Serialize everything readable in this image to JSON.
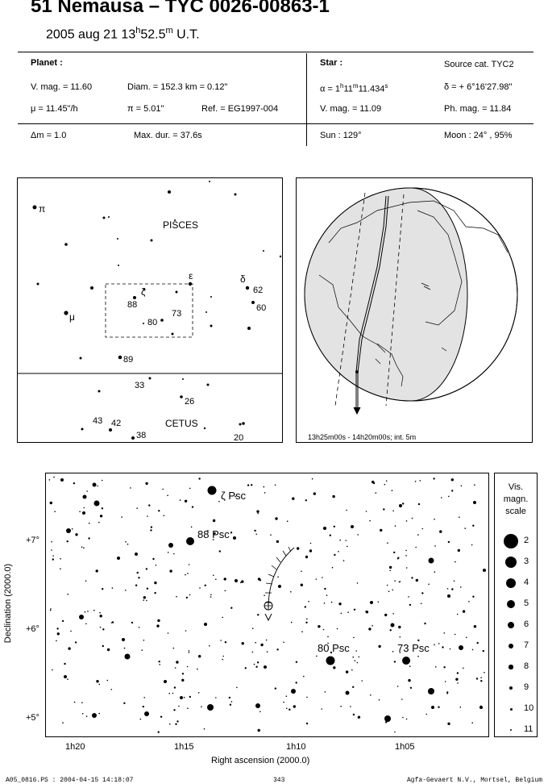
{
  "header": {
    "title": "51 Nemausa  –  TYC 0026-00863-1",
    "date": "2005 aug 21  13",
    "time_h": "h",
    "time_min": "52.5",
    "time_m": "m",
    "time_ut": " U.T."
  },
  "planet": {
    "heading": "Planet :",
    "vmag": "V. mag. = 11.60",
    "diam": "Diam. = 152.3 km = 0.12\"",
    "mu": "μ =  11.45\"/h",
    "pi": "π =  5.01\"",
    "ref": "Ref. = EG1997-004"
  },
  "star": {
    "heading": "Star :",
    "source": "Source cat.  TYC2",
    "alpha_prefix": "α =  1",
    "alpha_h": "h",
    "alpha_mid": "11",
    "alpha_m": "m",
    "alpha_s": "11.434",
    "alpha_sup": "s",
    "delta": "δ = + 6°16'27.98\"",
    "vmag": "V. mag. = 11.09",
    "phmag": "Ph. mag. = 11.84"
  },
  "bottom_row": {
    "dm": "Δm = 1.0",
    "maxdur": "Max. dur. = 37.6s",
    "sun": "Sun : 129°",
    "moon": "Moon :  24° , 95%"
  },
  "finder_chart": {
    "pisces": "PISCES",
    "cetus": "CETUS",
    "greek": [
      "π",
      "ε",
      "δ",
      "ζ",
      "μ"
    ],
    "numbers": [
      "62",
      "60",
      "88",
      "73",
      "80",
      "89",
      "33",
      "26",
      "43",
      "42",
      "38",
      "20"
    ]
  },
  "globe": {
    "caption": "13h25m00s - 14h20m00s; int.  5m"
  },
  "star_chart": {
    "labels": [
      "ζ Psc",
      "88 Psc",
      "80 Psc",
      "73 Psc"
    ],
    "y_ticks": [
      "+7°",
      "+6°",
      "+5°"
    ],
    "x_ticks": [
      "1h20",
      "1h15",
      "1h10",
      "1h05"
    ],
    "xlabel": "Right ascension (2000.0)",
    "ylabel": "Declination (2000.0)"
  },
  "mag_scale": {
    "title": [
      "Vis.",
      "magn.",
      "scale"
    ],
    "levels": [
      "2",
      "3",
      "4",
      "5",
      "6",
      "7",
      "8",
      "9",
      "10",
      "11"
    ]
  },
  "footer": {
    "left": "A05_0816.PS : 2004-04-15 14:18:07",
    "center": "343",
    "right": "Agfa-Gevaert N.V., Mortsel, Belgium"
  }
}
